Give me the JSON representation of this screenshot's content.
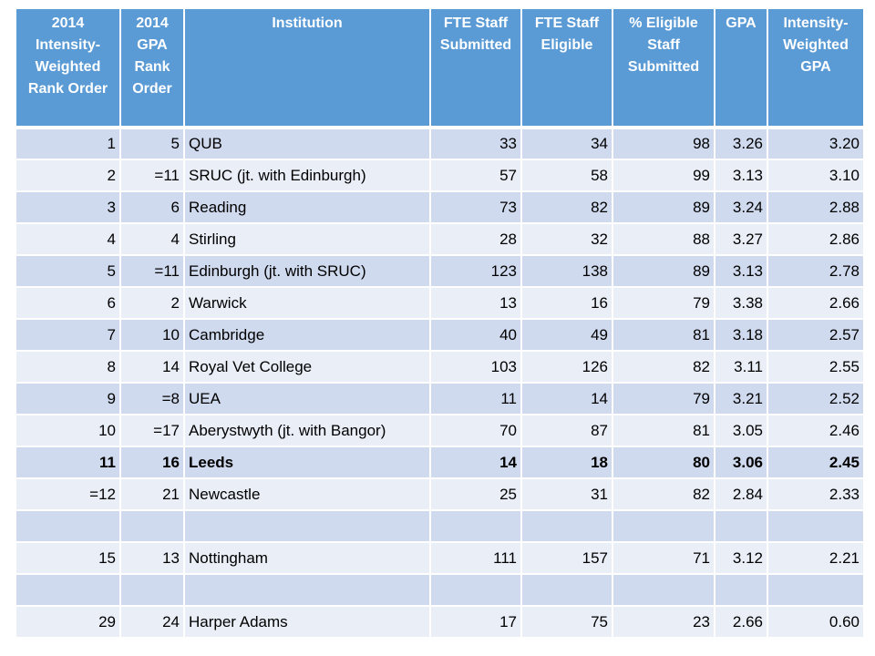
{
  "headers": [
    "2014 Intensity-Weighted Rank Order",
    "2014 GPA Rank Order",
    "Institution",
    "FTE Staff Submitted",
    "FTE Staff Eligible",
    "% Eligible Staff Submitted",
    "GPA",
    "Intensity-Weighted GPA"
  ],
  "rows": [
    {
      "iw_rank": "1",
      "gpa_rank": "5",
      "institution": "QUB",
      "fte_submitted": "33",
      "fte_eligible": "34",
      "pct_submitted": "98",
      "gpa": "3.26",
      "iw_gpa": "3.20"
    },
    {
      "iw_rank": "2",
      "gpa_rank": "=11",
      "institution": "SRUC (jt. with Edinburgh)",
      "fte_submitted": "57",
      "fte_eligible": "58",
      "pct_submitted": "99",
      "gpa": "3.13",
      "iw_gpa": "3.10"
    },
    {
      "iw_rank": "3",
      "gpa_rank": "6",
      "institution": "Reading",
      "fte_submitted": "73",
      "fte_eligible": "82",
      "pct_submitted": "89",
      "gpa": "3.24",
      "iw_gpa": "2.88"
    },
    {
      "iw_rank": "4",
      "gpa_rank": "4",
      "institution": "Stirling",
      "fte_submitted": "28",
      "fte_eligible": "32",
      "pct_submitted": "88",
      "gpa": "3.27",
      "iw_gpa": "2.86"
    },
    {
      "iw_rank": "5",
      "gpa_rank": "=11",
      "institution": "Edinburgh (jt. with SRUC)",
      "fte_submitted": "123",
      "fte_eligible": "138",
      "pct_submitted": "89",
      "gpa": "3.13",
      "iw_gpa": "2.78"
    },
    {
      "iw_rank": "6",
      "gpa_rank": "2",
      "institution": "Warwick",
      "fte_submitted": "13",
      "fte_eligible": "16",
      "pct_submitted": "79",
      "gpa": "3.38",
      "iw_gpa": "2.66"
    },
    {
      "iw_rank": "7",
      "gpa_rank": "10",
      "institution": "Cambridge",
      "fte_submitted": "40",
      "fte_eligible": "49",
      "pct_submitted": "81",
      "gpa": "3.18",
      "iw_gpa": "2.57"
    },
    {
      "iw_rank": "8",
      "gpa_rank": "14",
      "institution": "Royal Vet College",
      "fte_submitted": "103",
      "fte_eligible": "126",
      "pct_submitted": "82",
      "gpa": "3.11",
      "iw_gpa": "2.55"
    },
    {
      "iw_rank": "9",
      "gpa_rank": "=8",
      "institution": "UEA",
      "fte_submitted": "11",
      "fte_eligible": "14",
      "pct_submitted": "79",
      "gpa": "3.21",
      "iw_gpa": "2.52"
    },
    {
      "iw_rank": "10",
      "gpa_rank": "=17",
      "institution": "Aberystwyth (jt. with Bangor)",
      "fte_submitted": "70",
      "fte_eligible": "87",
      "pct_submitted": "81",
      "gpa": "3.05",
      "iw_gpa": "2.46"
    },
    {
      "iw_rank": "11",
      "gpa_rank": "16",
      "institution": "Leeds",
      "fte_submitted": "14",
      "fte_eligible": "18",
      "pct_submitted": "80",
      "gpa": "3.06",
      "iw_gpa": "2.45",
      "bold": true
    },
    {
      "iw_rank": "=12",
      "gpa_rank": "21",
      "institution": "Newcastle",
      "fte_submitted": "25",
      "fte_eligible": "31",
      "pct_submitted": "82",
      "gpa": "2.84",
      "iw_gpa": "2.33"
    },
    {
      "iw_rank": "",
      "gpa_rank": "",
      "institution": "",
      "fte_submitted": "",
      "fte_eligible": "",
      "pct_submitted": "",
      "gpa": "",
      "iw_gpa": ""
    },
    {
      "iw_rank": "15",
      "gpa_rank": "13",
      "institution": "Nottingham",
      "fte_submitted": "111",
      "fte_eligible": "157",
      "pct_submitted": "71",
      "gpa": "3.12",
      "iw_gpa": "2.21"
    },
    {
      "iw_rank": "",
      "gpa_rank": "",
      "institution": "",
      "fte_submitted": "",
      "fte_eligible": "",
      "pct_submitted": "",
      "gpa": "",
      "iw_gpa": ""
    },
    {
      "iw_rank": "29",
      "gpa_rank": "24",
      "institution": "Harper Adams",
      "fte_submitted": "17",
      "fte_eligible": "75",
      "pct_submitted": "23",
      "gpa": "2.66",
      "iw_gpa": "0.60"
    }
  ],
  "colors": {
    "header_bg": "#5b9bd5",
    "row_odd": "#d0daee",
    "row_even": "#e9eef7"
  }
}
